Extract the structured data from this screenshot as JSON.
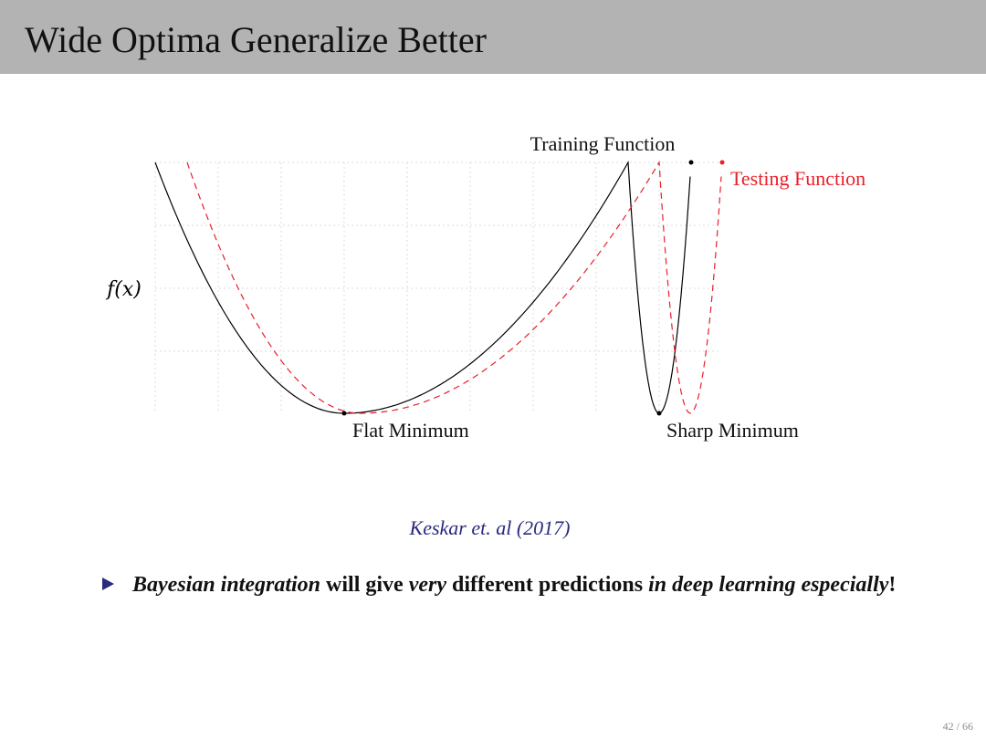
{
  "slide": {
    "title": "Wide Optima Generalize Better",
    "page_current": "42",
    "page_sep": " / ",
    "page_total": "66"
  },
  "figure": {
    "y_axis_label": "f(x)",
    "training_label": "Training Function",
    "testing_label": "Testing Function",
    "flat_label": "Flat Minimum",
    "sharp_label": "Sharp Minimum",
    "training_color": "#000000",
    "testing_color": "#e8202a",
    "grid": true,
    "grid_color": "#dddddd"
  },
  "citation": "Keskar et. al (2017)",
  "bullet": {
    "part1": "Bayesian integration",
    "part2": " will give ",
    "part3": "very",
    "part4": " different predictions ",
    "part5": "in deep learning especially",
    "part6": "!"
  },
  "colors": {
    "title_bar": "#b3b3b3",
    "accent": "#2a2a7e"
  }
}
